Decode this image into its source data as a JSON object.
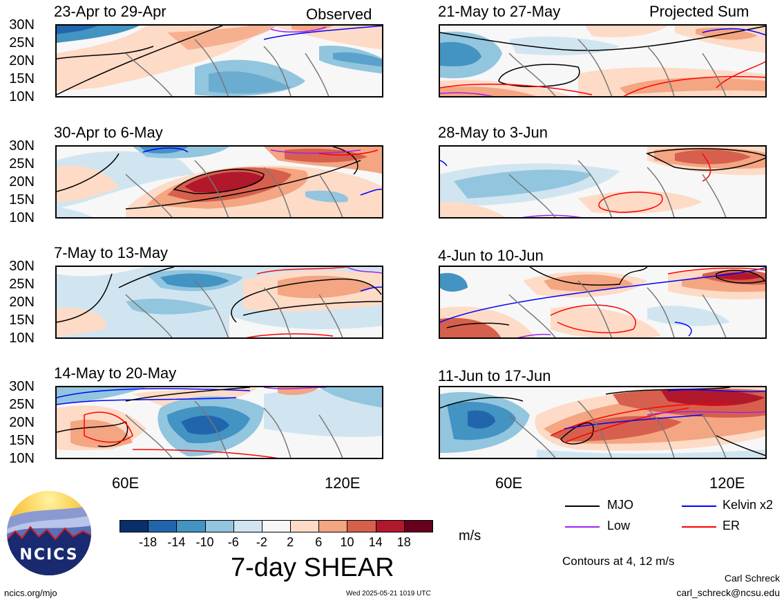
{
  "panels": {
    "left": [
      {
        "title": "23-Apr to 29-Apr",
        "tag": "Observed"
      },
      {
        "title": "30-Apr to 6-May",
        "tag": ""
      },
      {
        "title": "7-May to 13-May",
        "tag": ""
      },
      {
        "title": "14-May to 20-May",
        "tag": ""
      }
    ],
    "right": [
      {
        "title": "21-May to 27-May",
        "tag": "Projected Sum"
      },
      {
        "title": "28-May to 3-Jun",
        "tag": ""
      },
      {
        "title": "4-Jun to 10-Jun",
        "tag": ""
      },
      {
        "title": "11-Jun to 17-Jun",
        "tag": ""
      }
    ]
  },
  "axes": {
    "lat_ticks": [
      "30N",
      "25N",
      "20N",
      "15N",
      "10N"
    ],
    "lon_ticks": [
      "60E",
      "120E"
    ]
  },
  "colorbar": {
    "title": "7-day SHEAR",
    "units": "m/s",
    "labels": [
      "-18",
      "-14",
      "-10",
      "-6",
      "-2",
      "2",
      "6",
      "10",
      "14",
      "18"
    ],
    "colors": [
      "#08306b",
      "#2166ac",
      "#4393c3",
      "#92c5de",
      "#d1e5f0",
      "#f7f7f7",
      "#fddbc7",
      "#f4a582",
      "#d6604d",
      "#b2182b",
      "#67001f"
    ]
  },
  "legend": {
    "mjo": "MJO",
    "kelvin": "Kelvin x2",
    "low": "Low",
    "er": "ER",
    "contours": "Contours at 4, 12 m/s",
    "colors": {
      "mjo": "#000000",
      "kelvin": "#0000ff",
      "low": "#a020f0",
      "er": "#ff0000"
    }
  },
  "footer": {
    "logo_text": "NCICS",
    "site": "ncics.org/mjo",
    "timestamp": "Wed 2025-05-21 1019 UTC",
    "author": "Carl Schreck",
    "email": "carl_schreck@ncsu.edu"
  }
}
